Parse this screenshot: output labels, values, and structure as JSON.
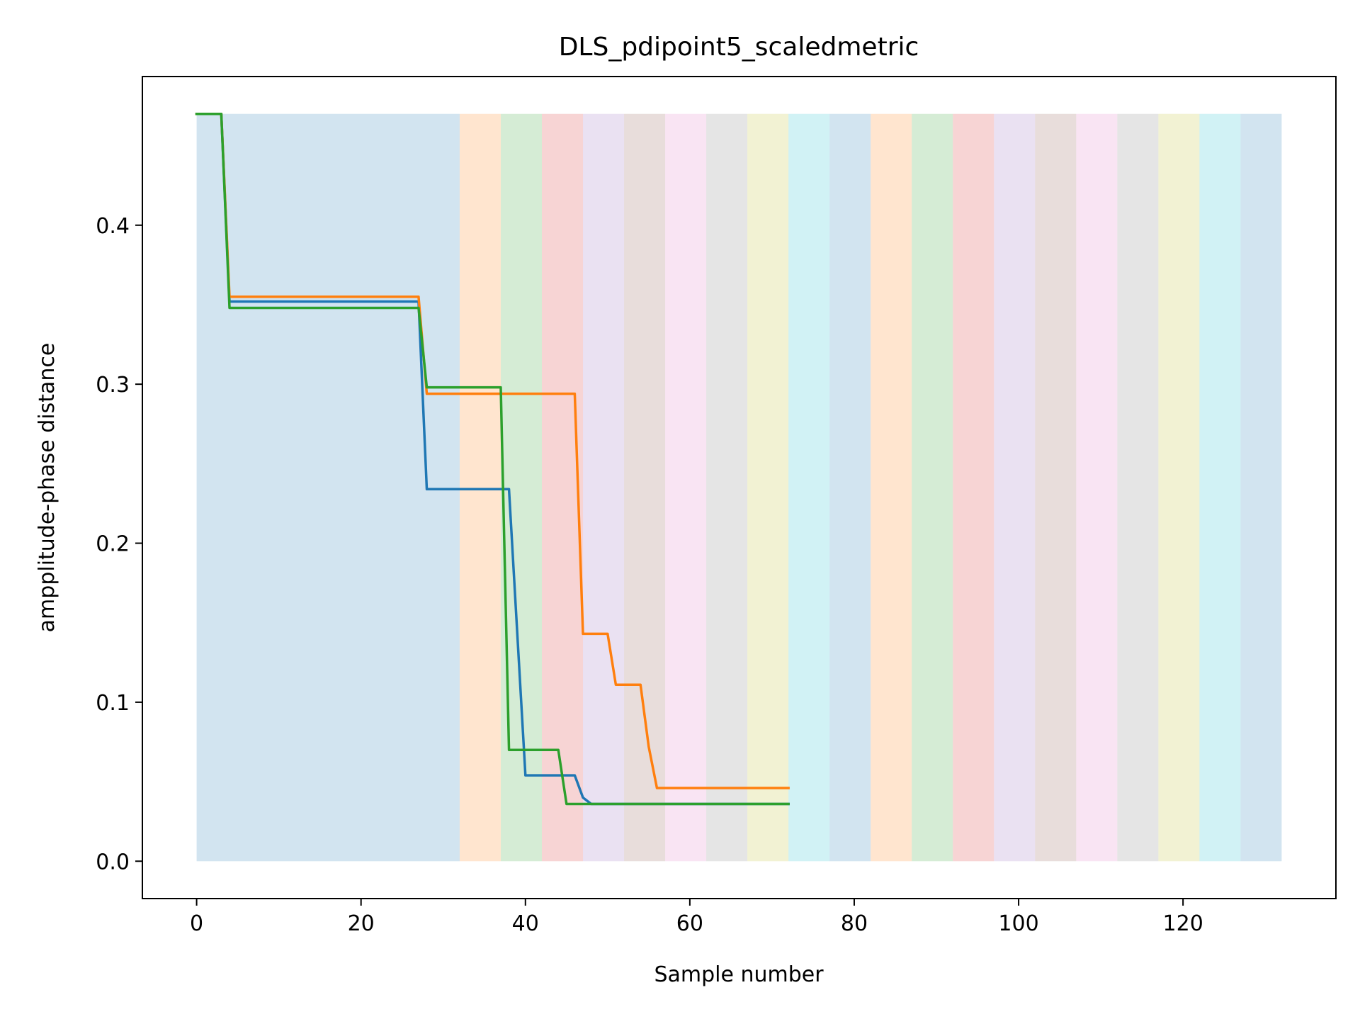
{
  "chart_data": {
    "type": "line",
    "title": "DLS_pdipoint5_scaledmetric",
    "xlabel": "Sample number",
    "ylabel": "ampplitude-phase distance",
    "xlim": [
      -6.6,
      138.6
    ],
    "ylim": [
      -0.0235,
      0.4935
    ],
    "xticks": [
      0,
      20,
      40,
      60,
      80,
      100,
      120
    ],
    "xtick_labels": [
      "0",
      "20",
      "40",
      "60",
      "80",
      "100",
      "120"
    ],
    "yticks": [
      0.0,
      0.1,
      0.2,
      0.3,
      0.4
    ],
    "ytick_labels": [
      "0.0",
      "0.1",
      "0.2",
      "0.3",
      "0.4"
    ],
    "grid": false,
    "legend": "none",
    "background_bands": {
      "ymin": 0.0,
      "ymax": 0.47,
      "opacity": 0.2,
      "bands": [
        {
          "start": 0,
          "end": 32,
          "color": "#1f77b4"
        },
        {
          "start": 32,
          "end": 37,
          "color": "#ff7f0e"
        },
        {
          "start": 37,
          "end": 42,
          "color": "#2ca02c"
        },
        {
          "start": 42,
          "end": 47,
          "color": "#d62728"
        },
        {
          "start": 47,
          "end": 52,
          "color": "#9467bd"
        },
        {
          "start": 52,
          "end": 57,
          "color": "#8c564b"
        },
        {
          "start": 57,
          "end": 62,
          "color": "#e377c2"
        },
        {
          "start": 62,
          "end": 67,
          "color": "#7f7f7f"
        },
        {
          "start": 67,
          "end": 72,
          "color": "#bcbd22"
        },
        {
          "start": 72,
          "end": 77,
          "color": "#17becf"
        },
        {
          "start": 77,
          "end": 82,
          "color": "#1f77b4"
        },
        {
          "start": 82,
          "end": 87,
          "color": "#ff7f0e"
        },
        {
          "start": 87,
          "end": 92,
          "color": "#2ca02c"
        },
        {
          "start": 92,
          "end": 97,
          "color": "#d62728"
        },
        {
          "start": 97,
          "end": 102,
          "color": "#9467bd"
        },
        {
          "start": 102,
          "end": 107,
          "color": "#8c564b"
        },
        {
          "start": 107,
          "end": 112,
          "color": "#e377c2"
        },
        {
          "start": 112,
          "end": 117,
          "color": "#7f7f7f"
        },
        {
          "start": 117,
          "end": 122,
          "color": "#bcbd22"
        },
        {
          "start": 122,
          "end": 127,
          "color": "#17becf"
        },
        {
          "start": 127,
          "end": 132,
          "color": "#1f77b4"
        }
      ]
    },
    "series": [
      {
        "color": "#1f77b4",
        "points": [
          [
            0,
            0.47
          ],
          [
            3,
            0.47
          ],
          [
            4,
            0.352
          ],
          [
            27,
            0.352
          ],
          [
            28,
            0.234
          ],
          [
            38,
            0.234
          ],
          [
            40,
            0.054
          ],
          [
            46,
            0.054
          ],
          [
            47,
            0.04
          ],
          [
            48,
            0.036
          ],
          [
            72,
            0.036
          ]
        ]
      },
      {
        "color": "#ff7f0e",
        "points": [
          [
            0,
            0.47
          ],
          [
            3,
            0.47
          ],
          [
            4,
            0.355
          ],
          [
            27,
            0.355
          ],
          [
            28,
            0.294
          ],
          [
            46,
            0.294
          ],
          [
            47,
            0.143
          ],
          [
            50,
            0.143
          ],
          [
            51,
            0.111
          ],
          [
            54,
            0.111
          ],
          [
            55,
            0.072
          ],
          [
            56,
            0.046
          ],
          [
            72,
            0.046
          ]
        ]
      },
      {
        "color": "#2ca02c",
        "points": [
          [
            0,
            0.47
          ],
          [
            3,
            0.47
          ],
          [
            4,
            0.348
          ],
          [
            27,
            0.348
          ],
          [
            28,
            0.298
          ],
          [
            37,
            0.298
          ],
          [
            38,
            0.07
          ],
          [
            44,
            0.07
          ],
          [
            45,
            0.036
          ],
          [
            72,
            0.036
          ]
        ]
      }
    ]
  }
}
